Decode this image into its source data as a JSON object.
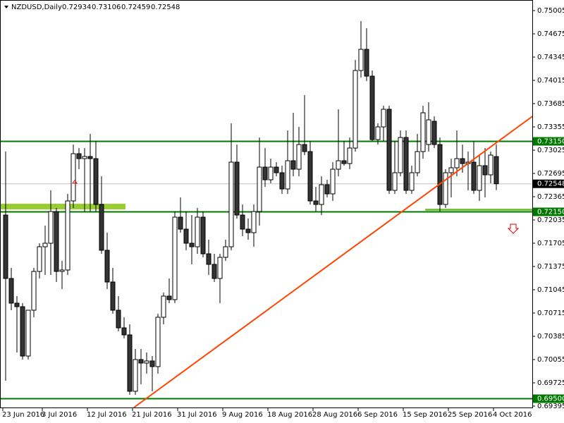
{
  "chart_data": {
    "type": "candlestick",
    "title": "NZDUSD,Daily",
    "categories": [
      "23 Jun 2016",
      null,
      null,
      null,
      null,
      null,
      null,
      "3 Jul 2016",
      null,
      null,
      null,
      null,
      null,
      null,
      null,
      "12 Jul 2016",
      null,
      null,
      null,
      null,
      null,
      null,
      null,
      "21 Jul 2016",
      null,
      null,
      null,
      null,
      null,
      null,
      null,
      "31 Jul 2016",
      null,
      null,
      null,
      null,
      null,
      null,
      null,
      "9 Aug 2016",
      null,
      null,
      null,
      null,
      null,
      null,
      null,
      "18 Aug 2016",
      null,
      null,
      null,
      null,
      null,
      null,
      null,
      "28 Aug 2016",
      null,
      null,
      null,
      null,
      null,
      null,
      null,
      "6 Sep 2016",
      null,
      null,
      null,
      null,
      null,
      null,
      null,
      "15 Sep 2016",
      null,
      null,
      null,
      null,
      null,
      null,
      null,
      "25 Sep 2016",
      null,
      null,
      null,
      null,
      null,
      null,
      null,
      "4 Oct 2016"
    ],
    "open": [
      0.72105,
      0.71205,
      0.70855,
      0.70805,
      0.70105,
      0.70755,
      0.71305,
      0.71655,
      0.71705,
      0.72155,
      0.71305,
      0.71325,
      0.72305,
      0.72975,
      0.72905,
      0.72935,
      0.72905,
      0.72255,
      0.71605,
      0.71155,
      0.70755,
      0.70505,
      0.70405,
      0.69605,
      0.70055,
      0.70005,
      0.70035,
      0.69955,
      0.70655,
      0.70955,
      0.70905,
      0.72075,
      0.71905,
      0.71705,
      0.71655,
      0.72075,
      0.71555,
      0.71405,
      0.71205,
      0.71505,
      0.71655,
      0.72855,
      0.72105,
      0.71905,
      0.71855,
      0.72155,
      0.72785,
      0.72605,
      0.72785,
      0.72705,
      0.72475,
      0.72875,
      0.72755,
      0.73105,
      0.73005,
      0.72305,
      0.72255,
      0.72535,
      0.72405,
      0.72755,
      0.72875,
      0.72835,
      0.73055,
      0.74155,
      0.74455,
      0.74075,
      0.73175,
      0.73355,
      0.73605,
      0.72455,
      0.72705,
      0.73205,
      0.72455,
      0.72705,
      0.73005,
      0.73105,
      0.73435,
      0.73105,
      0.72255,
      0.72705,
      0.72775,
      0.72905,
      0.72835,
      0.72855,
      0.72455,
      0.72805,
      0.72675,
      0.72934
    ],
    "high": [
      0.73005,
      0.71355,
      0.70955,
      0.70855,
      0.70755,
      0.71355,
      0.71705,
      0.71955,
      0.72455,
      0.72205,
      0.71455,
      0.72405,
      0.73105,
      0.73055,
      0.73055,
      0.73255,
      0.73155,
      0.72655,
      0.71855,
      0.71355,
      0.70955,
      0.70655,
      0.70555,
      0.70205,
      0.70205,
      0.70155,
      0.70105,
      0.70705,
      0.71005,
      0.71205,
      0.72155,
      0.72355,
      0.72155,
      0.72105,
      0.72205,
      0.72155,
      0.71755,
      0.71555,
      0.71555,
      0.71755,
      0.73405,
      0.73105,
      0.72255,
      0.72055,
      0.72255,
      0.73205,
      0.73055,
      0.72905,
      0.72855,
      0.72805,
      0.73305,
      0.73555,
      0.73355,
      0.73805,
      0.73155,
      0.72505,
      0.72655,
      0.72605,
      0.72855,
      0.73605,
      0.73155,
      0.73205,
      0.74305,
      0.74855,
      0.74755,
      0.74155,
      0.73405,
      0.73655,
      0.73655,
      0.73155,
      0.73305,
      0.73305,
      0.72805,
      0.73255,
      0.73655,
      0.73705,
      0.73505,
      0.73205,
      0.72755,
      0.72905,
      0.73305,
      0.73105,
      0.73005,
      0.73155,
      0.72955,
      0.73055,
      0.73005,
      0.73106
    ],
    "low": [
      0.69755,
      0.70755,
      0.70155,
      0.70055,
      0.70055,
      0.70655,
      0.71205,
      0.71255,
      0.71255,
      0.71155,
      0.71055,
      0.71255,
      0.72205,
      0.72755,
      0.72155,
      0.72155,
      0.72155,
      0.71555,
      0.71055,
      0.70705,
      0.70455,
      0.70355,
      0.69555,
      0.69555,
      0.69705,
      0.69855,
      0.69605,
      0.69855,
      0.70555,
      0.70855,
      0.70855,
      0.71855,
      0.71605,
      0.71405,
      0.71555,
      0.71505,
      0.71255,
      0.71155,
      0.70855,
      0.71455,
      0.71605,
      0.72055,
      0.71805,
      0.71755,
      0.71655,
      0.71955,
      0.72505,
      0.72555,
      0.72655,
      0.72405,
      0.72405,
      0.72655,
      0.72655,
      0.72955,
      0.72255,
      0.72155,
      0.72105,
      0.72355,
      0.72305,
      0.72655,
      0.72805,
      0.72755,
      0.73005,
      0.74055,
      0.74005,
      0.73155,
      0.73105,
      0.73155,
      0.72405,
      0.72405,
      0.72655,
      0.72405,
      0.72405,
      0.72655,
      0.72905,
      0.73005,
      0.73055,
      0.72155,
      0.72205,
      0.72355,
      0.72655,
      0.72705,
      0.72455,
      0.72405,
      0.72305,
      0.72355,
      0.72555,
      0.72459
    ],
    "close": [
      0.71205,
      0.70855,
      0.70805,
      0.70105,
      0.70755,
      0.71305,
      0.71655,
      0.71705,
      0.72155,
      0.71305,
      0.71325,
      0.72305,
      0.72975,
      0.72905,
      0.72935,
      0.72905,
      0.72255,
      0.71605,
      0.71155,
      0.70755,
      0.70505,
      0.70405,
      0.69605,
      0.70055,
      0.70005,
      0.70035,
      0.69955,
      0.70655,
      0.70955,
      0.70905,
      0.72075,
      0.71905,
      0.71705,
      0.71655,
      0.72075,
      0.71555,
      0.71405,
      0.71205,
      0.71505,
      0.71655,
      0.72855,
      0.72105,
      0.71905,
      0.71855,
      0.72155,
      0.72785,
      0.72605,
      0.72785,
      0.72705,
      0.72475,
      0.72875,
      0.72755,
      0.73105,
      0.73005,
      0.72305,
      0.72255,
      0.72535,
      0.72405,
      0.72755,
      0.72875,
      0.72835,
      0.73055,
      0.74155,
      0.74455,
      0.74075,
      0.73175,
      0.73355,
      0.73605,
      0.72455,
      0.72705,
      0.73205,
      0.72455,
      0.72705,
      0.73005,
      0.73555,
      0.73455,
      0.73105,
      0.72255,
      0.72705,
      0.72775,
      0.72905,
      0.72835,
      0.72855,
      0.72455,
      0.72805,
      0.72675,
      0.72955,
      0.72548
    ],
    "up_color": "#ffffff",
    "down_color": "#333333",
    "ylim": [
      0.69375,
      0.75155
    ],
    "yticks": [
      0.75005,
      0.74675,
      0.74345,
      0.74015,
      0.73685,
      0.73355,
      0.73025,
      0.72695,
      0.72365,
      0.72035,
      0.71705,
      0.71375,
      0.71045,
      0.70715,
      0.70385,
      0.70055,
      0.69725,
      0.69395
    ],
    "levels": [
      {
        "value": 0.7315,
        "label": "0.73150",
        "color": "#007800"
      },
      {
        "value": 0.7215,
        "label": "0.72150",
        "color": "#007800"
      },
      {
        "value": 0.695,
        "label": "0.69500",
        "color": "#007800"
      }
    ],
    "zones": [
      {
        "x": [
          -1,
          21.25
        ],
        "values": [
          0.72265,
          0.72185
        ],
        "color": "#9acd32"
      },
      {
        "x": [
          74.4,
          93.4
        ],
        "values": [
          0.72195,
          0.72165
        ],
        "color": "#7cc242"
      }
    ],
    "trendline": {
      "x": [
        22.75,
        93.4
      ],
      "values": [
        0.69375,
        0.73505
      ],
      "color": "#ff4500"
    }
  }
}
